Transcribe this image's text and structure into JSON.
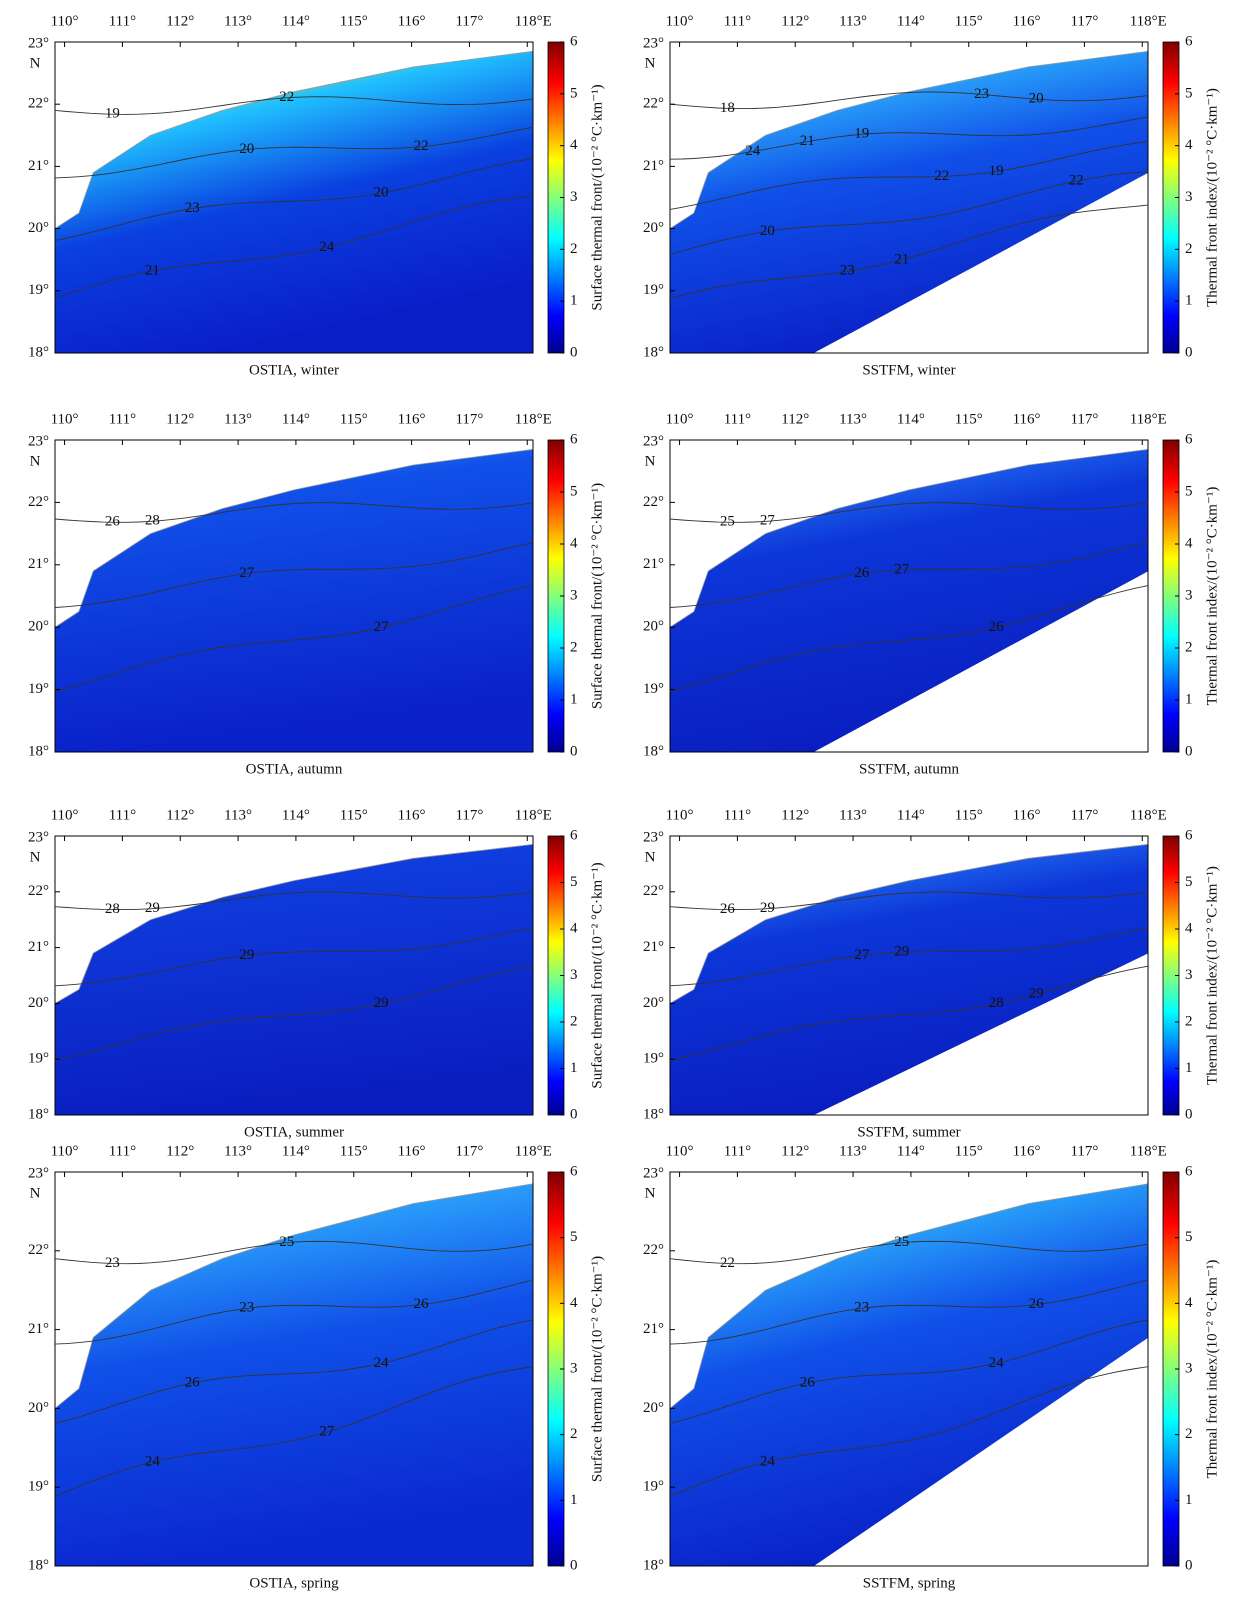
{
  "lon_ticks": [
    "110°",
    "111°",
    "112°",
    "113°",
    "114°",
    "115°",
    "116°",
    "117°",
    "118°E"
  ],
  "lat_ticks": [
    "23°",
    "22°",
    "21°",
    "20°",
    "19°",
    "18°"
  ],
  "lat_hemisphere": "N",
  "colorbar_lim": [
    0,
    6
  ],
  "colorbar_ticks": [
    0,
    1,
    2,
    3,
    4,
    5,
    6
  ],
  "panels": [
    {
      "caption": "OSTIA, winter",
      "colorbar_label": "Surface thermal front/(10⁻² °C·km⁻¹)",
      "contour_labels": [
        "19",
        "20",
        "20",
        "21",
        "22",
        "22",
        "23",
        "24"
      ]
    },
    {
      "caption": "SSTFM, winter",
      "colorbar_label": "Thermal front index/(10⁻² °C·km⁻¹)",
      "contour_labels": [
        "18",
        "19",
        "19",
        "20",
        "21",
        "20",
        "21",
        "22",
        "22",
        "23",
        "23",
        "24"
      ]
    },
    {
      "caption": "OSTIA, autumn",
      "colorbar_label": "Surface thermal front/(10⁻² °C·km⁻¹)",
      "contour_labels": [
        "26",
        "27",
        "27",
        "28"
      ]
    },
    {
      "caption": "SSTFM, autumn",
      "colorbar_label": "Thermal front index/(10⁻² °C·km⁻¹)",
      "contour_labels": [
        "25",
        "26",
        "26",
        "27",
        "27"
      ]
    },
    {
      "caption": "OSTIA, summer",
      "colorbar_label": "Surface thermal front/(10⁻² °C·km⁻¹)",
      "contour_labels": [
        "28",
        "29",
        "29",
        "29"
      ]
    },
    {
      "caption": "SSTFM, summer",
      "colorbar_label": "Thermal front index/(10⁻² °C·km⁻¹)",
      "contour_labels": [
        "26",
        "27",
        "28",
        "29",
        "29",
        "29"
      ]
    },
    {
      "caption": "OSTIA, spring",
      "colorbar_label": "Surface thermal front/(10⁻² °C·km⁻¹)",
      "contour_labels": [
        "23",
        "23",
        "24",
        "24",
        "25",
        "26",
        "26",
        "27"
      ]
    },
    {
      "caption": "SSTFM, spring",
      "colorbar_label": "Thermal front index/(10⁻² °C·km⁻¹)",
      "contour_labels": [
        "22",
        "23",
        "24",
        "24",
        "25",
        "26",
        "26"
      ]
    }
  ]
}
